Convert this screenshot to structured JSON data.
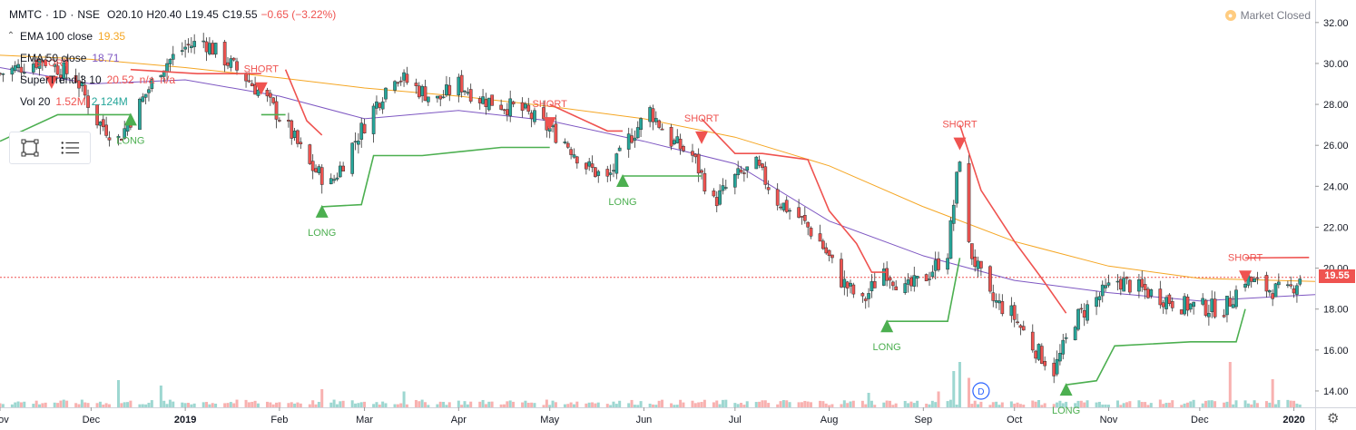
{
  "header": {
    "symbol": "MMTC",
    "sep1": "·",
    "interval": "1D",
    "sep2": "·",
    "exchange": "NSE",
    "open": "O20.10",
    "high": "H20.40",
    "low": "L19.45",
    "close": "C19.55",
    "change": "−0.65 (−3.22%)"
  },
  "market_status": {
    "icon": "clock-icon",
    "label": "Market Closed"
  },
  "indicators": [
    {
      "name": "EMA 100 close",
      "values": [
        "19.35"
      ],
      "color": "#f5a623"
    },
    {
      "name": "EMA 50 close",
      "values": [
        "18.71"
      ],
      "color": "#7e57c2"
    },
    {
      "name": "SuperTrend 3 10",
      "values": [
        "20.52",
        "n/a",
        "n/a"
      ],
      "color": "#ef5350"
    },
    {
      "name": "Vol 20",
      "values": [
        "1.52M",
        "2.124M"
      ],
      "color": "#26a69a"
    }
  ],
  "toolbar": {
    "icons": [
      "rectangle-select-icon",
      "list-icon"
    ]
  },
  "last_price": "19.55",
  "colors": {
    "up": "#26a69a",
    "down": "#ef5350",
    "ema100": "#f5a623",
    "ema50": "#7e57c2",
    "st_up": "#4caf50",
    "st_down": "#ef5350"
  },
  "chart_data": {
    "type": "candlestick",
    "y_ticks": [
      "14.00",
      "16.00",
      "18.00",
      "20.00",
      "22.00",
      "24.00",
      "26.00",
      "28.00",
      "30.00",
      "32.00"
    ],
    "ylim": [
      13.2,
      33.1
    ],
    "x_labels": [
      "Nov",
      "Dec",
      "2019",
      "Feb",
      "Mar",
      "Apr",
      "May",
      "Jun",
      "Jul",
      "Aug",
      "Sep",
      "Oct",
      "Nov",
      "Dec",
      "2020"
    ],
    "x_label_bold": [
      "2019",
      "2020"
    ],
    "xlim": [
      "2018-11-01",
      "2020-01-08"
    ],
    "axis_dates": [
      "2018-11-01",
      "2018-12-01",
      "2019-01-01",
      "2019-02-01",
      "2019-03-01",
      "2019-04-01",
      "2019-05-01",
      "2019-06-01",
      "2019-07-01",
      "2019-08-01",
      "2019-09-01",
      "2019-10-01",
      "2019-11-01",
      "2019-12-01",
      "2020-01-01"
    ],
    "close_path": [
      [
        "2018-11-01",
        29.5
      ],
      [
        "2018-11-15",
        30.2
      ],
      [
        "2018-11-26",
        29.3
      ],
      [
        "2018-12-03",
        27.2
      ],
      [
        "2018-12-10",
        26.3
      ],
      [
        "2018-12-17",
        28.0
      ],
      [
        "2018-12-24",
        29.8
      ],
      [
        "2019-01-01",
        30.8
      ],
      [
        "2019-01-07",
        31.1
      ],
      [
        "2019-01-14",
        30.2
      ],
      [
        "2019-01-21",
        29.3
      ],
      [
        "2019-01-28",
        28.2
      ],
      [
        "2019-02-04",
        26.8
      ],
      [
        "2019-02-11",
        25.0
      ],
      [
        "2019-02-18",
        24.1
      ],
      [
        "2019-02-25",
        26.0
      ],
      [
        "2019-03-04",
        27.8
      ],
      [
        "2019-03-11",
        29.5
      ],
      [
        "2019-03-18",
        28.8
      ],
      [
        "2019-03-25",
        28.2
      ],
      [
        "2019-04-01",
        29.0
      ],
      [
        "2019-04-08",
        28.3
      ],
      [
        "2019-04-15",
        28.0
      ],
      [
        "2019-04-22",
        27.7
      ],
      [
        "2019-04-29",
        27.0
      ],
      [
        "2019-05-06",
        26.2
      ],
      [
        "2019-05-13",
        25.0
      ],
      [
        "2019-05-20",
        24.3
      ],
      [
        "2019-05-27",
        26.3
      ],
      [
        "2019-06-03",
        27.7
      ],
      [
        "2019-06-10",
        26.2
      ],
      [
        "2019-06-17",
        25.5
      ],
      [
        "2019-06-24",
        23.2
      ],
      [
        "2019-07-01",
        24.4
      ],
      [
        "2019-07-08",
        25.0
      ],
      [
        "2019-07-15",
        23.3
      ],
      [
        "2019-07-22",
        22.5
      ],
      [
        "2019-07-29",
        21.3
      ],
      [
        "2019-08-05",
        19.4
      ],
      [
        "2019-08-12",
        18.3
      ],
      [
        "2019-08-19",
        20.0
      ],
      [
        "2019-08-26",
        18.9
      ],
      [
        "2019-09-02",
        19.6
      ],
      [
        "2019-09-09",
        20.8
      ],
      [
        "2019-09-13",
        25.5
      ],
      [
        "2019-09-16",
        21.0
      ],
      [
        "2019-09-23",
        18.5
      ],
      [
        "2019-09-30",
        17.8
      ],
      [
        "2019-10-07",
        16.2
      ],
      [
        "2019-10-14",
        15.0
      ],
      [
        "2019-10-21",
        17.5
      ],
      [
        "2019-10-28",
        18.5
      ],
      [
        "2019-11-04",
        19.4
      ],
      [
        "2019-11-11",
        19.0
      ],
      [
        "2019-11-18",
        18.6
      ],
      [
        "2019-11-25",
        18.2
      ],
      [
        "2019-12-02",
        18.1
      ],
      [
        "2019-12-09",
        18.0
      ],
      [
        "2019-12-16",
        19.5
      ],
      [
        "2019-12-23",
        19.0
      ],
      [
        "2019-12-30",
        18.8
      ],
      [
        "2020-01-03",
        19.55
      ]
    ],
    "ema100": [
      [
        "2018-11-01",
        30.4
      ],
      [
        "2018-12-01",
        30.2
      ],
      [
        "2019-01-01",
        29.8
      ],
      [
        "2019-02-01",
        29.3
      ],
      [
        "2019-03-01",
        28.8
      ],
      [
        "2019-04-01",
        28.4
      ],
      [
        "2019-05-01",
        27.9
      ],
      [
        "2019-06-01",
        27.3
      ],
      [
        "2019-07-01",
        26.4
      ],
      [
        "2019-08-01",
        25.0
      ],
      [
        "2019-09-01",
        23.0
      ],
      [
        "2019-10-01",
        21.3
      ],
      [
        "2019-11-01",
        20.1
      ],
      [
        "2019-12-01",
        19.5
      ],
      [
        "2020-01-08",
        19.35
      ]
    ],
    "ema50": [
      [
        "2018-11-01",
        29.8
      ],
      [
        "2018-12-01",
        29.0
      ],
      [
        "2019-01-01",
        29.2
      ],
      [
        "2019-02-01",
        28.4
      ],
      [
        "2019-03-01",
        27.3
      ],
      [
        "2019-04-01",
        27.7
      ],
      [
        "2019-05-01",
        27.2
      ],
      [
        "2019-06-01",
        26.2
      ],
      [
        "2019-07-01",
        25.1
      ],
      [
        "2019-08-01",
        22.3
      ],
      [
        "2019-09-01",
        20.6
      ],
      [
        "2019-10-01",
        19.4
      ],
      [
        "2019-11-01",
        18.8
      ],
      [
        "2019-12-01",
        18.4
      ],
      [
        "2020-01-08",
        18.71
      ]
    ],
    "supertrend": [
      {
        "trend": "up",
        "points": [
          [
            "2018-11-01",
            26.2
          ],
          [
            "2018-11-20",
            27.5
          ],
          [
            "2018-12-14",
            27.5
          ]
        ]
      },
      {
        "trend": "down",
        "points": [
          [
            "2018-12-14",
            29.7
          ],
          [
            "2019-01-05",
            29.5
          ],
          [
            "2019-01-26",
            29.5
          ]
        ]
      },
      {
        "trend": "up",
        "points": [
          [
            "2019-01-26",
            27.5
          ],
          [
            "2019-02-03",
            27.5
          ]
        ]
      },
      {
        "trend": "down",
        "points": [
          [
            "2019-02-03",
            29.7
          ],
          [
            "2019-02-10",
            27.2
          ],
          [
            "2019-02-15",
            26.5
          ]
        ]
      },
      {
        "trend": "up",
        "points": [
          [
            "2019-02-15",
            23.0
          ],
          [
            "2019-02-28",
            23.1
          ],
          [
            "2019-03-04",
            25.5
          ],
          [
            "2019-03-20",
            25.5
          ],
          [
            "2019-04-15",
            25.9
          ],
          [
            "2019-05-01",
            25.9
          ]
        ]
      },
      {
        "trend": "down",
        "points": [
          [
            "2019-05-01",
            28.0
          ],
          [
            "2019-05-20",
            26.7
          ],
          [
            "2019-05-25",
            26.7
          ]
        ]
      },
      {
        "trend": "up",
        "points": [
          [
            "2019-05-25",
            24.5
          ],
          [
            "2019-06-20",
            24.5
          ]
        ]
      },
      {
        "trend": "down",
        "points": [
          [
            "2019-06-20",
            27.3
          ],
          [
            "2019-07-01",
            25.6
          ],
          [
            "2019-07-10",
            25.6
          ],
          [
            "2019-07-25",
            25.3
          ],
          [
            "2019-08-01",
            22.8
          ],
          [
            "2019-08-10",
            21.2
          ],
          [
            "2019-08-15",
            19.8
          ],
          [
            "2019-08-20",
            19.8
          ]
        ]
      },
      {
        "trend": "up",
        "points": [
          [
            "2019-08-20",
            17.4
          ],
          [
            "2019-09-09",
            17.4
          ],
          [
            "2019-09-13",
            20.5
          ]
        ]
      },
      {
        "trend": "down",
        "points": [
          [
            "2019-09-13",
            27.0
          ],
          [
            "2019-09-20",
            23.8
          ],
          [
            "2019-10-01",
            21.3
          ],
          [
            "2019-10-10",
            19.5
          ],
          [
            "2019-10-18",
            17.8
          ]
        ]
      },
      {
        "trend": "up",
        "points": [
          [
            "2019-10-18",
            14.3
          ],
          [
            "2019-10-28",
            14.5
          ],
          [
            "2019-11-03",
            16.2
          ],
          [
            "2019-11-28",
            16.4
          ],
          [
            "2019-12-13",
            16.4
          ],
          [
            "2019-12-16",
            18.0
          ]
        ]
      },
      {
        "trend": "down",
        "points": [
          [
            "2019-12-16",
            20.5
          ],
          [
            "2020-01-06",
            20.52
          ]
        ]
      }
    ],
    "signals": [
      {
        "type": "SHORT",
        "date": "2018-11-18",
        "price": 30.0
      },
      {
        "type": "LONG",
        "date": "2018-12-14",
        "price": 27.5
      },
      {
        "type": "SHORT",
        "date": "2019-01-26",
        "price": 29.7
      },
      {
        "type": "LONG",
        "date": "2019-02-15",
        "price": 23.0
      },
      {
        "type": "SHORT",
        "date": "2019-05-01",
        "price": 28.0
      },
      {
        "type": "LONG",
        "date": "2019-05-25",
        "price": 24.5
      },
      {
        "type": "SHORT",
        "date": "2019-06-20",
        "price": 27.3
      },
      {
        "type": "LONG",
        "date": "2019-08-20",
        "price": 17.4
      },
      {
        "type": "SHORT",
        "date": "2019-09-13",
        "price": 27.0
      },
      {
        "type": "LONG",
        "date": "2019-10-18",
        "price": 14.3
      },
      {
        "type": "SHORT",
        "date": "2019-12-16",
        "price": 20.5
      }
    ],
    "volume_spikes": [
      [
        "2018-12-10",
        0.6
      ],
      [
        "2018-12-24",
        0.48
      ],
      [
        "2019-02-15",
        0.4
      ],
      [
        "2019-03-14",
        0.35
      ],
      [
        "2019-08-14",
        0.32
      ],
      [
        "2019-09-06",
        0.35
      ],
      [
        "2019-09-11",
        0.8
      ],
      [
        "2019-09-13",
        1.0
      ],
      [
        "2019-09-16",
        0.65
      ],
      [
        "2019-12-11",
        1.0
      ],
      [
        "2019-12-25",
        0.62
      ],
      [
        "2020-01-06",
        0.9
      ]
    ],
    "markers": [
      {
        "label": "D",
        "date": "2019-09-20"
      }
    ]
  }
}
